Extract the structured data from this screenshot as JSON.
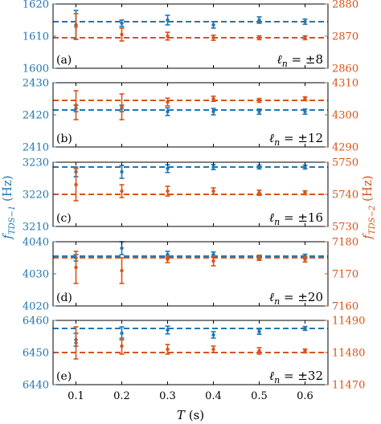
{
  "chart_data": {
    "type": "scatter",
    "layout": "5 vertically stacked panels with dual y-axes and shared x-axis",
    "xlabel": "T (s)",
    "ylabel_left": "f_{TDS-1} (Hz)",
    "ylabel_right": "f_{TDS-2} (Hz)",
    "x_ticks": [
      "0.1",
      "0.2",
      "0.3",
      "0.4",
      "0.5",
      "0.6"
    ],
    "xlim": [
      0.05,
      0.65
    ],
    "colors": {
      "left": "#1f77b4",
      "right": "#d95319"
    },
    "panels": [
      {
        "label": "(a)",
        "annotation": "ℓn = ±8",
        "ylim_left": [
          1600,
          1620
        ],
        "yticks_left": [
          "1600",
          "1610",
          "1620"
        ],
        "ylim_right": [
          2860,
          2880
        ],
        "yticks_right": [
          "2860",
          "2870",
          "2880"
        ],
        "left": {
          "ref": 1614.5,
          "x": [
            0.1,
            0.2,
            0.3,
            0.4,
            0.5,
            0.6
          ],
          "y": [
            1613.5,
            1614.0,
            1615.0,
            1613.5,
            1615.0,
            1614.5
          ],
          "err": [
            4.5,
            1.0,
            1.5,
            1.0,
            1.0,
            0.8
          ]
        },
        "right": {
          "ref": 2869.5,
          "x": [
            0.1,
            0.2,
            0.3,
            0.4,
            0.5,
            0.6
          ],
          "y": [
            2873.0,
            2870.5,
            2870.0,
            2869.5,
            2869.5,
            2869.5
          ],
          "err": [
            4.0,
            2.0,
            1.2,
            0.8,
            0.6,
            0.6
          ]
        }
      },
      {
        "label": "(b)",
        "annotation": "ℓn = ±12",
        "ylim_left": [
          2410,
          2430
        ],
        "yticks_left": [
          "2410",
          "2420",
          "2430"
        ],
        "ylim_right": [
          4290,
          4310
        ],
        "yticks_right": [
          "4290",
          "4300",
          "4310"
        ],
        "left": {
          "ref": 2421.5,
          "x": [
            0.1,
            0.2,
            0.3,
            0.4,
            0.5,
            0.6
          ],
          "y": [
            2422.0,
            2422.0,
            2421.0,
            2421.0,
            2421.0,
            2421.0
          ],
          "err": [
            1.0,
            1.0,
            1.2,
            1.0,
            0.8,
            0.8
          ]
        },
        "right": {
          "ref": 4304.5,
          "x": [
            0.1,
            0.2,
            0.3,
            0.4,
            0.5,
            0.6
          ],
          "y": [
            4303.0,
            4302.5,
            4304.0,
            4305.0,
            4304.5,
            4305.0
          ],
          "err": [
            4.5,
            4.0,
            1.2,
            0.8,
            0.6,
            0.6
          ]
        }
      },
      {
        "label": "(c)",
        "annotation": "ℓn = ±16",
        "ylim_left": [
          3210,
          3230
        ],
        "yticks_left": [
          "3210",
          "3220",
          "3230"
        ],
        "ylim_right": [
          5730,
          5750
        ],
        "yticks_right": [
          "5730",
          "5740",
          "5750"
        ],
        "left": {
          "ref": 3228.5,
          "x": [
            0.1,
            0.2,
            0.3,
            0.4,
            0.5,
            0.6
          ],
          "y": [
            3227.0,
            3227.0,
            3228.0,
            3228.5,
            3228.5,
            3228.5
          ],
          "err": [
            1.5,
            2.0,
            1.2,
            0.8,
            0.6,
            0.6
          ]
        },
        "right": {
          "ref": 5740.0,
          "x": [
            0.1,
            0.2,
            0.3,
            0.4,
            0.5,
            0.6
          ],
          "y": [
            5743.0,
            5741.0,
            5741.0,
            5741.0,
            5740.5,
            5740.5
          ],
          "err": [
            5.0,
            2.0,
            1.5,
            1.0,
            0.8,
            0.6
          ]
        }
      },
      {
        "label": "(d)",
        "annotation": "ℓn = ±20",
        "ylim_left": [
          4020,
          4040
        ],
        "yticks_left": [
          "4020",
          "4030",
          "4040"
        ],
        "ylim_right": [
          7160,
          7180
        ],
        "yticks_right": [
          "7160",
          "7170",
          "7180"
        ],
        "left": {
          "ref": 4035.5,
          "x": [
            0.1,
            0.2,
            0.3,
            0.4,
            0.5,
            0.6
          ],
          "y": [
            4035.0,
            4038.0,
            4036.0,
            4036.0,
            4035.0,
            4035.5
          ],
          "err": [
            1.0,
            2.0,
            1.0,
            0.8,
            0.6,
            0.6
          ]
        },
        "right": {
          "ref": 7175.0,
          "x": [
            0.1,
            0.2,
            0.3,
            0.4,
            0.5,
            0.6
          ],
          "y": [
            7172.0,
            7171.0,
            7174.5,
            7174.0,
            7175.0,
            7174.5
          ],
          "err": [
            5.0,
            4.0,
            1.0,
            1.5,
            0.8,
            0.8
          ]
        }
      },
      {
        "label": "(e)",
        "annotation": "ℓn = ±32",
        "ylim_left": [
          6440,
          6460
        ],
        "yticks_left": [
          "6440",
          "6450",
          "6460"
        ],
        "ylim_right": [
          11470,
          11490
        ],
        "yticks_right": [
          "11470",
          "11480",
          "11490"
        ],
        "left": {
          "ref": 6457.5,
          "x": [
            0.1,
            0.2,
            0.3,
            0.4,
            0.5,
            0.6
          ],
          "y": [
            6454.0,
            6456.0,
            6457.0,
            6455.5,
            6456.5,
            6457.5
          ],
          "err": [
            2.0,
            2.0,
            1.2,
            1.0,
            0.8,
            0.6
          ]
        },
        "right": {
          "ref": 11480.0,
          "x": [
            0.1,
            0.2,
            0.3,
            0.4,
            0.5,
            0.6
          ],
          "y": [
            11483.0,
            11482.0,
            11481.0,
            11481.0,
            11480.5,
            11480.5
          ],
          "err": [
            5.0,
            2.5,
            1.5,
            1.0,
            1.0,
            0.6
          ]
        }
      }
    ]
  }
}
